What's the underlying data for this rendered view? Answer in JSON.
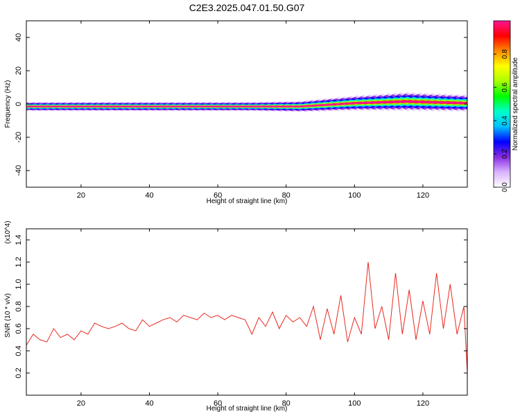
{
  "title": "C2E3.2025.047.01.50.G07",
  "chart_data": [
    {
      "type": "heatmap",
      "xlabel": "Height of straight line (km)",
      "ylabel": "Frequency (Hz)",
      "xlim": [
        4,
        133
      ],
      "ylim": [
        -50,
        50
      ],
      "xticks": [
        20,
        40,
        60,
        80,
        100,
        120
      ],
      "yticks": [
        -40,
        -20,
        0,
        20,
        40
      ],
      "colorbar": {
        "label": "Normalized spectral amplitude",
        "range": [
          0,
          1
        ],
        "ticks": [
          "0.0",
          "0.2",
          "0.4",
          "0.6",
          "0.8"
        ],
        "colors": [
          "#ffffff",
          "#d9b3ff",
          "#8a2be2",
          "#0000ff",
          "#00bfff",
          "#00ffcc",
          "#00ff00",
          "#aaff00",
          "#ffff00",
          "#ff8c00",
          "#ff0000",
          "#ff1493"
        ]
      },
      "band_halfwidth_hz": [
        [
          4,
          2.5
        ],
        [
          30,
          2.5
        ],
        [
          70,
          2.5
        ],
        [
          84,
          3
        ],
        [
          100,
          4
        ],
        [
          115,
          5
        ],
        [
          133,
          4.5
        ]
      ],
      "ridge_center_hz": [
        [
          4,
          -1.5
        ],
        [
          84,
          -1.5
        ],
        [
          100,
          0.5
        ],
        [
          115,
          1.5
        ],
        [
          133,
          0.5
        ]
      ]
    },
    {
      "type": "line",
      "xlabel": "Height of straight line (km)",
      "ylabel": "SNR (10 * v/v)",
      "y_multiplier": "(x10^4)",
      "xlim": [
        4,
        133
      ],
      "ylim": [
        0,
        1.5
      ],
      "xticks": [
        20,
        40,
        60,
        80,
        100,
        120
      ],
      "yticks": [
        0.2,
        0.4,
        0.6,
        0.8,
        1.0,
        1.2,
        1.4
      ],
      "series": [
        {
          "color": "#e8281e",
          "x": [
            4,
            6,
            8,
            10,
            12,
            14,
            16,
            18,
            20,
            22,
            24,
            26,
            28,
            30,
            32,
            34,
            36,
            38,
            40,
            42,
            44,
            46,
            48,
            50,
            52,
            54,
            56,
            58,
            60,
            62,
            64,
            66,
            68,
            70,
            72,
            74,
            76,
            78,
            80,
            82,
            84,
            86,
            88,
            90,
            92,
            94,
            96,
            98,
            100,
            102,
            104,
            106,
            108,
            110,
            112,
            114,
            116,
            118,
            120,
            122,
            124,
            126,
            128,
            130,
            132,
            133
          ],
          "y": [
            0.45,
            0.55,
            0.5,
            0.48,
            0.6,
            0.52,
            0.55,
            0.5,
            0.58,
            0.55,
            0.65,
            0.62,
            0.6,
            0.62,
            0.65,
            0.6,
            0.58,
            0.68,
            0.62,
            0.65,
            0.68,
            0.7,
            0.66,
            0.72,
            0.7,
            0.68,
            0.74,
            0.7,
            0.72,
            0.68,
            0.72,
            0.7,
            0.68,
            0.55,
            0.7,
            0.62,
            0.75,
            0.6,
            0.72,
            0.66,
            0.7,
            0.62,
            0.8,
            0.5,
            0.78,
            0.55,
            0.9,
            0.48,
            0.7,
            0.55,
            1.2,
            0.6,
            0.8,
            0.5,
            1.1,
            0.55,
            0.95,
            0.5,
            0.85,
            0.55,
            1.1,
            0.6,
            1.0,
            0.55,
            0.8,
            0.2
          ]
        }
      ]
    }
  ]
}
